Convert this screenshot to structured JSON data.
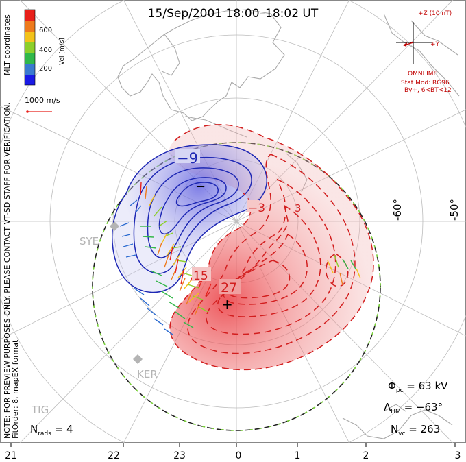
{
  "title": "15/Sep/2001  18:00–18:02  UT",
  "side_note_line1": "NOTE: FOR PREVIEW PURPOSES ONLY. PLEASE CONTACT VT-SD STAFF FOR VERIFICATION.",
  "side_note_line2": "FitOrder: 8, mapEX format",
  "coord_label": "MLT coordinates",
  "colorbar": {
    "label": "Vel [m/s]",
    "ticks": [
      "600",
      "400",
      "200"
    ],
    "colors": [
      "#e8201a",
      "#ee7a1c",
      "#f3c21a",
      "#8ccf2a",
      "#30b84a",
      "#3a7ad0",
      "#1a1ae6"
    ]
  },
  "ref_vector": "1000 m/s",
  "imf": {
    "z_label": "+Z (10 nT)",
    "y_label": "+Y",
    "source": "OMNI IMF",
    "stat_mod": "Stat Mod: RG96",
    "stat_cond": "By+, 6<BT<12"
  },
  "lat_labels": [
    "-60°",
    "-50°"
  ],
  "contour_labels": [
    "−9",
    "−3",
    "3",
    "15",
    "27"
  ],
  "extrema": {
    "min_symbol": "−",
    "max_symbol": "+"
  },
  "stations": [
    "SYE",
    "KER",
    "TIG"
  ],
  "stats": {
    "phi_label": "Φ",
    "phi_sub": "pc",
    "phi_value": " = 63 kV",
    "lambda_label": "Λ",
    "lambda_sub": "HM",
    "lambda_value": " = −63°",
    "nvc_label": "N",
    "nvc_sub": "vc",
    "nvc_value": " = 263",
    "nrads_label": "N",
    "nrads_sub": "rads",
    "nrads_value": " = 4"
  },
  "mlt_ticks": [
    "21",
    "22",
    "23",
    "0",
    "1",
    "2",
    "3"
  ],
  "colors": {
    "positive_fill": "#e8323a",
    "negative_fill": "#3a3ad8",
    "positive_line": "#d21e1e",
    "negative_line": "#1e28b4",
    "grid": "#bcbcbc",
    "coast": "#a8a8a8"
  }
}
